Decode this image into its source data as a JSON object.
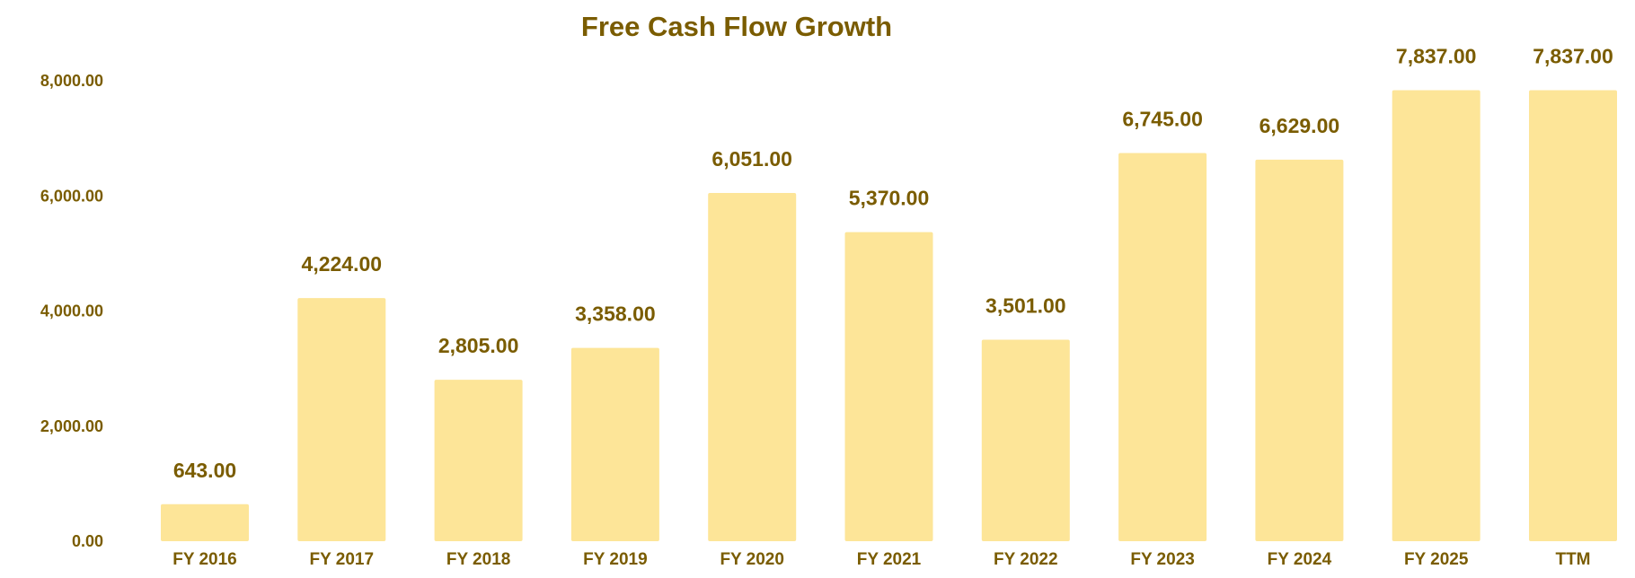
{
  "chart_data": {
    "type": "bar",
    "title": "Free Cash Flow Growth",
    "xlabel": "",
    "ylabel": "",
    "categories": [
      "FY 2016",
      "FY 2017",
      "FY 2018",
      "FY 2019",
      "FY 2020",
      "FY 2021",
      "FY 2022",
      "FY 2023",
      "FY 2024",
      "FY 2025",
      "TTM"
    ],
    "values": [
      643.0,
      4224.0,
      2805.0,
      3358.0,
      6051.0,
      5370.0,
      3501.0,
      6745.0,
      6629.0,
      7837.0,
      7837.0
    ],
    "value_labels": [
      "643.00",
      "4,224.00",
      "2,805.00",
      "3,358.00",
      "6,051.00",
      "5,370.00",
      "3,501.00",
      "6,745.00",
      "6,629.00",
      "7,837.00",
      "7,837.00"
    ],
    "yticks": [
      0,
      2000,
      4000,
      6000,
      8000
    ],
    "ytick_labels": [
      "0.00",
      "2,000.00",
      "4,000.00",
      "6,000.00",
      "8,000.00"
    ],
    "ylim": [
      0,
      8000
    ],
    "grid": false,
    "legend": "none",
    "colors": {
      "bar": "#fde598",
      "text": "#7a5c00"
    }
  }
}
